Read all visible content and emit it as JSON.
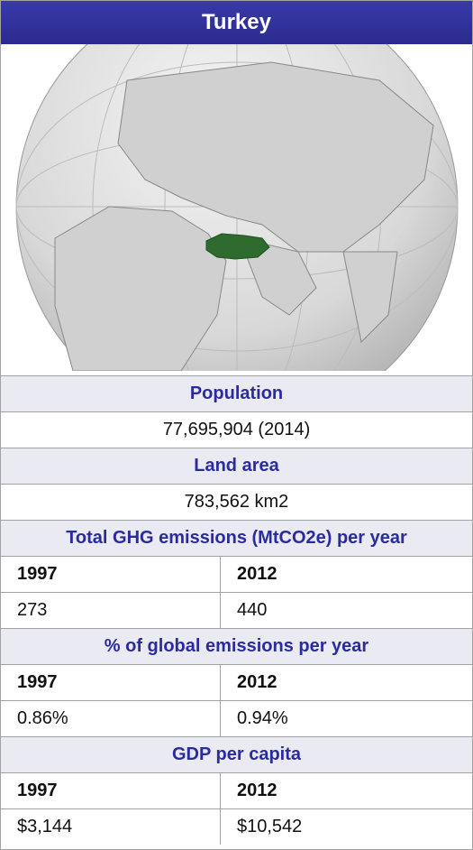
{
  "title": "Turkey",
  "population": {
    "label": "Population",
    "value": "77,695,904 (2014)"
  },
  "land_area": {
    "label": "Land area",
    "value": "783,562 km2"
  },
  "tables": [
    {
      "header": "Total GHG emissions (MtCO2e) per year",
      "columns": [
        "1997",
        "2012"
      ],
      "values": [
        "273",
        "440"
      ]
    },
    {
      "header": "% of global emissions per year",
      "columns": [
        "1997",
        "2012"
      ],
      "values": [
        "0.86%",
        "0.94%"
      ]
    },
    {
      "header": "GDP per capita",
      "columns": [
        "1997",
        "2012"
      ],
      "values": [
        "$3,144",
        "$10,542"
      ]
    }
  ]
}
